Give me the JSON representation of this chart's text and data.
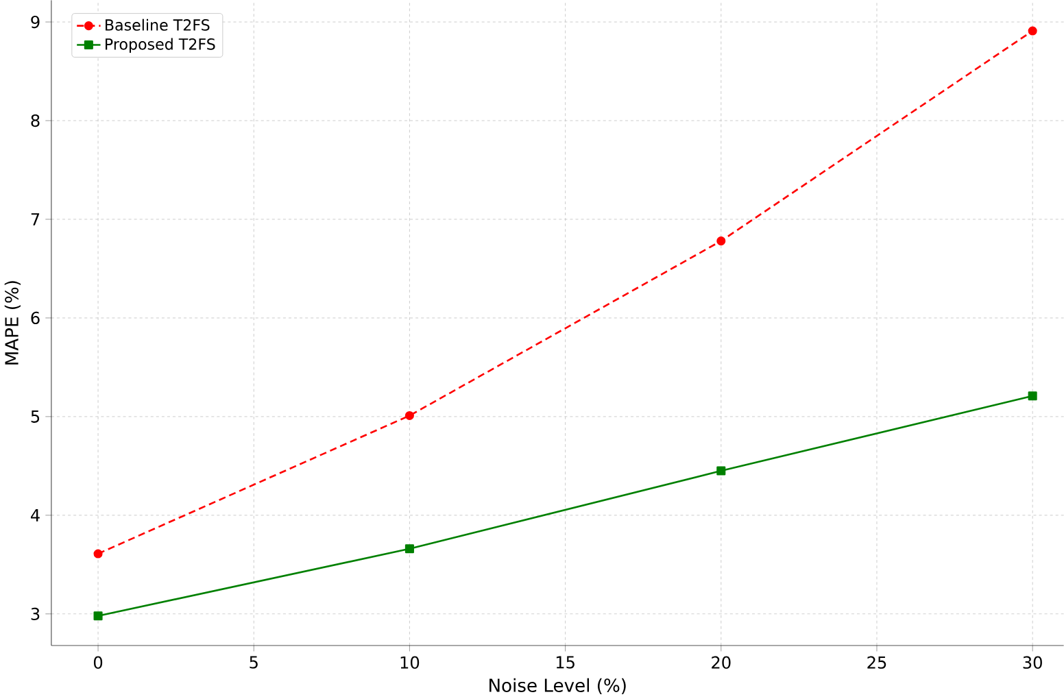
{
  "chart_data": {
    "type": "line",
    "xlabel": "Noise Level (%)",
    "ylabel": "MAPE (%)",
    "x": [
      0,
      10,
      20,
      30
    ],
    "series": [
      {
        "name": "Baseline T2FS",
        "color": "#ff0000",
        "values": [
          3.61,
          5.01,
          6.78,
          8.91
        ],
        "marker": "circle",
        "line_style": "dashed"
      },
      {
        "name": "Proposed T2FS",
        "color": "#008000",
        "values": [
          2.98,
          3.66,
          4.45,
          5.21
        ],
        "marker": "square",
        "line_style": "solid"
      }
    ],
    "xlim": [
      -1.5,
      31
    ],
    "ylim": [
      2.68,
      9.22
    ],
    "xticks": [
      0,
      5,
      10,
      15,
      20,
      25,
      30
    ],
    "yticks": [
      3,
      4,
      5,
      6,
      7,
      8,
      9
    ],
    "grid": true,
    "legend": "top left"
  }
}
